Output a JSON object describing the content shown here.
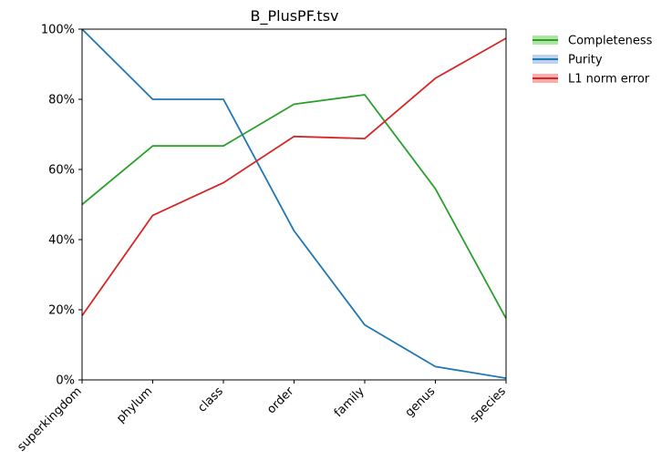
{
  "chart_data": {
    "type": "line",
    "title": "B_PlusPF.tsv",
    "xlabel": "",
    "ylabel": "",
    "categories": [
      "superkingdom",
      "phylum",
      "class",
      "order",
      "family",
      "genus",
      "species"
    ],
    "ylim": [
      0,
      1
    ],
    "yticks": [
      {
        "value": 0,
        "label": "0%"
      },
      {
        "value": 0.2,
        "label": "20%"
      },
      {
        "value": 0.4,
        "label": "40%"
      },
      {
        "value": 0.6,
        "label": "60%"
      },
      {
        "value": 0.8,
        "label": "80%"
      },
      {
        "value": 1.0,
        "label": "100%"
      }
    ],
    "grid": false,
    "legend": "outside-top-right",
    "series": [
      {
        "name": "Completeness",
        "color": "#2ca02c",
        "band_color": "#98df8a",
        "values": [
          0.5,
          0.667,
          0.667,
          0.786,
          0.813,
          0.545,
          0.175
        ]
      },
      {
        "name": "Purity",
        "color": "#1f77b4",
        "band_color": "#aec7e8",
        "values": [
          1.0,
          0.8,
          0.8,
          0.425,
          0.157,
          0.038,
          0.005
        ]
      },
      {
        "name": "L1 norm error",
        "color": "#d62728",
        "band_color": "#ff9896",
        "values": [
          0.183,
          0.469,
          0.562,
          0.694,
          0.688,
          0.86,
          0.974
        ]
      }
    ]
  }
}
